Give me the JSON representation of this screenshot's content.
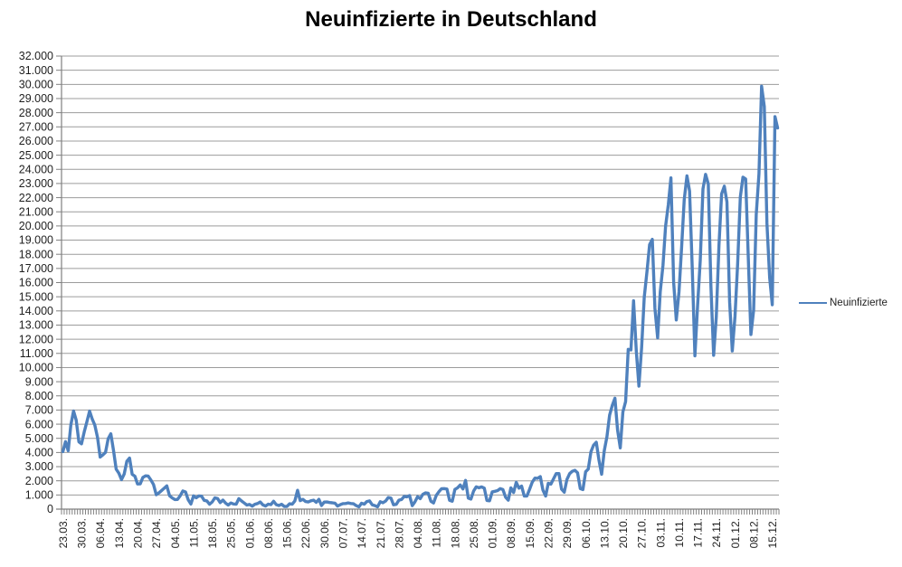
{
  "title": "Neuinfizierte in Deutschland",
  "legend": {
    "label": "Neuinfizierte"
  },
  "colors": {
    "series": "#4F81BD",
    "gridline": "#9c9c9c",
    "axis": "#808080",
    "tick_text": "#1f1f1f",
    "background": "#ffffff"
  },
  "axes": {
    "y_tick_labels": [
      "0",
      "1.000",
      "2.000",
      "3.000",
      "4.000",
      "5.000",
      "6.000",
      "7.000",
      "8.000",
      "9.000",
      "10.000",
      "11.000",
      "12.000",
      "13.000",
      "14.000",
      "15.000",
      "16.000",
      "17.000",
      "18.000",
      "19.000",
      "20.000",
      "21.000",
      "22.000",
      "23.000",
      "24.000",
      "25.000",
      "26.000",
      "27.000",
      "28.000",
      "29.000",
      "30.000",
      "31.000",
      "32.000"
    ],
    "x_tick_labels": [
      "23.03.",
      "30.03.",
      "06.04.",
      "13.04.",
      "20.04.",
      "27.04.",
      "04.05.",
      "11.05.",
      "18.05.",
      "25.05.",
      "01.06.",
      "08.06.",
      "15.06.",
      "22.06.",
      "30.06.",
      "07.07.",
      "14.07.",
      "21.07.",
      "28.07.",
      "04.08.",
      "11.08.",
      "18.08.",
      "25.08.",
      "01.09.",
      "08.09.",
      "15.09.",
      "22.09.",
      "29.09.",
      "06.10.",
      "13.10.",
      "20.10.",
      "27.10.",
      "03.11.",
      "10.11.",
      "17.11.",
      "24.11.",
      "01.12.",
      "08.12.",
      "15.12."
    ]
  },
  "chart_data": {
    "type": "line",
    "title": "Neuinfizierte in Deutschland",
    "series_name": "Neuinfizierte",
    "x_start_label": "23.03.",
    "x_end_label": "15.12.",
    "x_label_every_n_points": 7,
    "ylim": [
      0,
      32000
    ],
    "y_step": 1000,
    "grid": true,
    "legend_position": "right",
    "values": [
      4062,
      4764,
      4118,
      5940,
      6933,
      6294,
      4751,
      4615,
      5453,
      6156,
      6922,
      6365,
      5936,
      5061,
      3677,
      3834,
      4003,
      4974,
      5323,
      4133,
      2821,
      2537,
      2082,
      2486,
      3380,
      3609,
      2458,
      2323,
      1775,
      1785,
      2237,
      2352,
      2337,
      2055,
      1737,
      1018,
      1144,
      1304,
      1478,
      1639,
      945,
      793,
      679,
      685,
      947,
      1284,
      1209,
      667,
      357,
      933,
      798,
      933,
      913,
      620,
      583,
      342,
      513,
      797,
      745,
      460,
      638,
      431,
      289,
      432,
      362,
      353,
      741,
      578,
      433,
      286,
      333,
      213,
      342,
      394,
      507,
      301,
      214,
      350,
      318,
      555,
      318,
      258,
      348,
      192,
      186,
      378,
      345,
      580,
      1331,
      601,
      687,
      537,
      503,
      587,
      630,
      477,
      687,
      256,
      498,
      503,
      466,
      446,
      422,
      219,
      312,
      390,
      397,
      442,
      395,
      378,
      248,
      159,
      412,
      351,
      534,
      583,
      305,
      249,
      159,
      522,
      454,
      569,
      815,
      781,
      305,
      340,
      633,
      684,
      902,
      870,
      955,
      240,
      509,
      879,
      741,
      1045,
      1147,
      1122,
      555,
      436,
      966,
      1226,
      1445,
      1449,
      1415,
      625,
      561,
      1390,
      1510,
      1707,
      1427,
      2034,
      782,
      711,
      1278,
      1576,
      1507,
      1571,
      1479,
      610,
      590,
      1218,
      1256,
      1311,
      1453,
      1378,
      847,
      633,
      1499,
      1176,
      1892,
      1484,
      1630,
      920,
      927,
      1407,
      1901,
      2194,
      2179,
      2297,
      1345,
      922,
      1821,
      1769,
      2143,
      2507,
      2507,
      1411,
      1192,
      2089,
      2503,
      2673,
      2737,
      2563,
      1450,
      1382,
      2639,
      2828,
      4058,
      4516,
      4721,
      3483,
      2467,
      4122,
      5132,
      6638,
      7334,
      7830,
      5587,
      4325,
      6868,
      7595,
      11287,
      11242,
      14714,
      11176,
      8685,
      11409,
      14964,
      16774,
      18681,
      19059,
      14177,
      12097,
      15352,
      17214,
      19990,
      21506,
      23399,
      16017,
      13363,
      15332,
      18487,
      21866,
      23542,
      22461,
      16947,
      10824,
      14419,
      17561,
      22609,
      23648,
      22964,
      15741,
      10864,
      13554,
      18633,
      22268,
      22806,
      21695,
      14611,
      11169,
      13604,
      17270,
      22046,
      23449,
      23318,
      17767,
      12332,
      14054,
      20815,
      23679,
      29875,
      28438,
      20200,
      16362,
      14432,
      27728,
      26923
    ]
  }
}
